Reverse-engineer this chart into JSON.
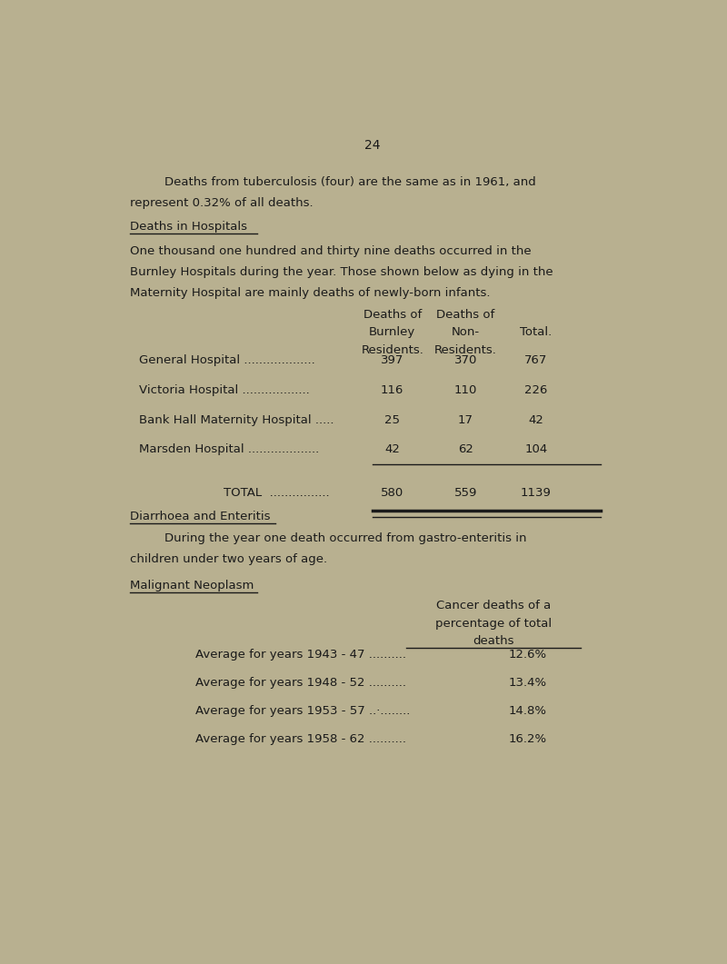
{
  "background_color": "#b8b090",
  "page_number": "24",
  "font_family": "Courier New",
  "text_color": "#1a1a1a",
  "para1_line1": "Deaths from tuberculosis (four) are the same as in 1961, and",
  "para1_line2": "represent 0.32% of all deaths.",
  "section1_heading": "Deaths in Hospitals",
  "para2_line1": "One thousand one hundred and thirty nine deaths occurred in the",
  "para2_line2": "Burnley Hospitals during the year. Those shown below as dying in the",
  "para2_line3": "Maternity Hospital are mainly deaths of newly-born infants.",
  "col_header_line1": [
    "Deaths of",
    "Deaths of",
    ""
  ],
  "col_header_line2": [
    "Burnley",
    "Non-",
    "Total."
  ],
  "col_header_line3": [
    "Residents.",
    "Residents.",
    ""
  ],
  "table_rows": [
    {
      "label": "General Hospital ...................",
      "col1": "397",
      "col2": "370",
      "col3": "767"
    },
    {
      "label": "Victoria Hospital ..................",
      "col1": "116",
      "col2": "110",
      "col3": "226"
    },
    {
      "label": "Bank Hall Maternity Hospital .....",
      "col1": "25",
      "col2": "17",
      "col3": "42"
    },
    {
      "label": "Marsden Hospital ...................",
      "col1": "42",
      "col2": "62",
      "col3": "104"
    }
  ],
  "total_label": "TOTAL  ................",
  "total_col1": "580",
  "total_col2": "559",
  "total_col3": "1139",
  "section2_heading": "Diarrhoea and Enteritis",
  "para3_line1": "During the year one death occurred from gastro-enteritis in",
  "para3_line2": "children under two years of age.",
  "section3_heading": "Malignant Neoplasm",
  "cancer_col_header_line1": "Cancer deaths of a",
  "cancer_col_header_line2": "percentage of total",
  "cancer_col_header_line3": "deaths",
  "cancer_rows": [
    {
      "label": "Average for years 1943 - 47 ..........",
      "value": "12.6%"
    },
    {
      "label": "Average for years 1948 - 52 ..........",
      "value": "13.4%"
    },
    {
      "label": "Average for years 1953 - 57 ..·........",
      "value": "14.8%"
    },
    {
      "label": "Average for years 1958 - 62 ..........",
      "value": "16.2%"
    }
  ]
}
